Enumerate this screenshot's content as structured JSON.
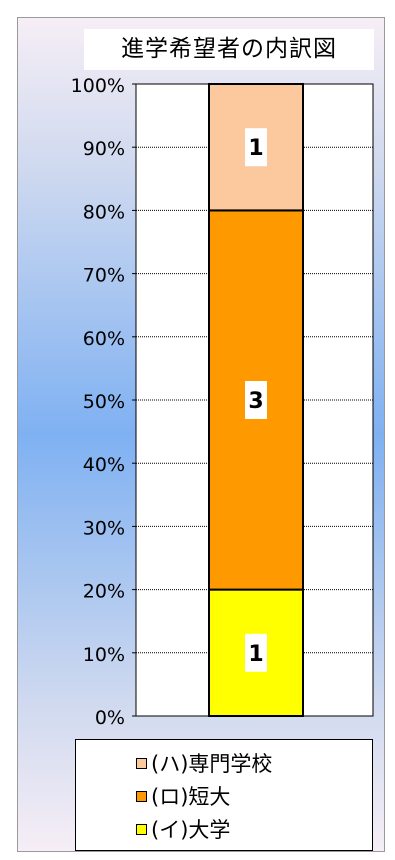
{
  "chart_data": {
    "type": "bar",
    "stacked": true,
    "title": "進学希望者の内訳図",
    "categories": [
      ""
    ],
    "y_ticks": [
      "0%",
      "10%",
      "20%",
      "30%",
      "40%",
      "50%",
      "60%",
      "70%",
      "80%",
      "90%",
      "100%"
    ],
    "ylim": [
      0,
      100
    ],
    "grid": true,
    "legend_position": "bottom",
    "series": [
      {
        "name": "(イ)大学",
        "values": [
          20
        ],
        "data_label": "1",
        "color": "#ffff00"
      },
      {
        "name": "(ロ)短大",
        "values": [
          60
        ],
        "data_label": "3",
        "color": "#ff9900"
      },
      {
        "name": "(ハ)専門学校",
        "values": [
          20
        ],
        "data_label": "1",
        "color": "#fcc99e"
      }
    ]
  }
}
